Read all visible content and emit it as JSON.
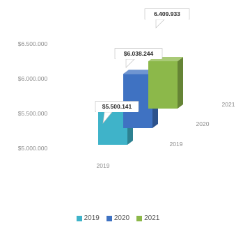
{
  "chart_data": {
    "type": "bar",
    "title": "",
    "xlabel": "",
    "ylabel": "",
    "categories": [
      "2019",
      "2020",
      "2021"
    ],
    "values": [
      5500141,
      6038244,
      6409933
    ],
    "value_labels": [
      "$5.500.141",
      "$6.038.244",
      "6.409.933"
    ],
    "ylim": [
      5000000,
      6500000
    ],
    "yticks": [
      {
        "value": 5000000,
        "label": "$5.000.000"
      },
      {
        "value": 5500000,
        "label": "$5.500.000"
      },
      {
        "value": 6000000,
        "label": "$6.000.000"
      },
      {
        "value": 6500000,
        "label": "$6.500.000"
      }
    ],
    "colors": [
      "#3fb3c9",
      "#3f72c2",
      "#8cb84a"
    ],
    "legend": {
      "position": "bottom",
      "entries": [
        "2019",
        "2020",
        "2021"
      ]
    },
    "grid": false,
    "style": "3d"
  }
}
